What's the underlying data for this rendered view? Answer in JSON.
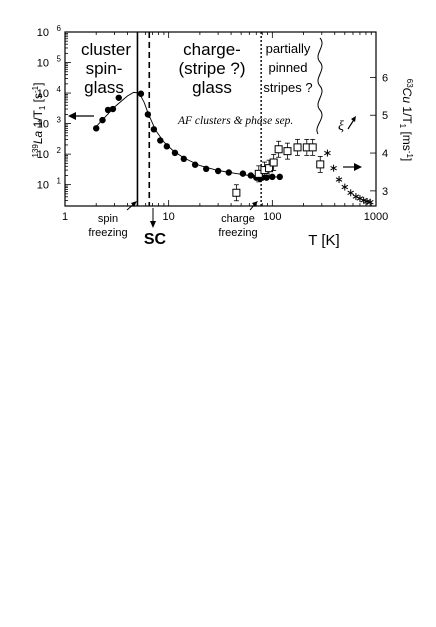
{
  "chart_data": {
    "type": "scatter",
    "x_scale": "log",
    "y_left_scale": "log",
    "xlim": [
      1,
      1000
    ],
    "ylim_left": [
      2,
      1000000
    ],
    "ylim_right": [
      2.6,
      7.2
    ],
    "xlabel": "T [K]",
    "ylabel_left": "139La 1/T1 [s-1]",
    "ylabel_right": "63Cu 1/T1 [ms-1]",
    "x_ticks": [
      {
        "value": 1,
        "label": "1"
      },
      {
        "value": 10,
        "label": "10"
      },
      {
        "value": 100,
        "label": "100"
      },
      {
        "value": 1000,
        "label": "1000"
      }
    ],
    "y_left_ticks": [
      {
        "value": 10,
        "base": "10",
        "exp": "1"
      },
      {
        "value": 100,
        "base": "10",
        "exp": "2"
      },
      {
        "value": 1000,
        "base": "10",
        "exp": "3"
      },
      {
        "value": 10000,
        "base": "10",
        "exp": "4"
      },
      {
        "value": 100000,
        "base": "10",
        "exp": "5"
      },
      {
        "value": 1000000,
        "base": "10",
        "exp": "6"
      }
    ],
    "y_right_ticks": [
      {
        "value": 3,
        "label": "3"
      },
      {
        "value": 4,
        "label": "4"
      },
      {
        "value": 5,
        "label": "5"
      },
      {
        "value": 6,
        "label": "6"
      }
    ],
    "series": [
      {
        "marker": "filled-circle",
        "axis": "left",
        "points": [
          [
            2.0,
            700
          ],
          [
            2.3,
            1300
          ],
          [
            2.6,
            2800
          ],
          [
            2.9,
            3000
          ],
          [
            3.3,
            7000
          ],
          [
            5.4,
            9500
          ],
          [
            6.3,
            2000
          ],
          [
            7.2,
            650
          ],
          [
            8.3,
            280
          ],
          [
            9.6,
            180
          ],
          [
            11.5,
            110
          ],
          [
            14,
            70
          ],
          [
            18,
            45
          ],
          [
            23,
            33
          ],
          [
            30,
            28
          ],
          [
            38,
            25
          ],
          [
            52,
            23
          ],
          [
            62,
            20
          ],
          [
            70,
            17
          ],
          [
            76,
            16
          ],
          [
            80,
            17
          ],
          [
            88,
            17
          ],
          [
            100,
            18
          ],
          [
            118,
            18
          ]
        ]
      },
      {
        "marker": "open-square",
        "axis": "right",
        "points": [
          [
            45,
            2.95
          ],
          [
            74,
            3.45
          ],
          [
            84,
            3.55
          ],
          [
            93,
            3.6
          ],
          [
            103,
            3.75
          ],
          [
            115,
            4.1
          ],
          [
            140,
            4.05
          ],
          [
            175,
            4.15
          ],
          [
            215,
            4.15
          ],
          [
            245,
            4.15
          ],
          [
            290,
            3.7
          ]
        ]
      },
      {
        "marker": "asterisk",
        "axis": "right",
        "points": [
          [
            340,
            4.0
          ],
          [
            390,
            3.6
          ],
          [
            440,
            3.3
          ],
          [
            500,
            3.1
          ],
          [
            570,
            2.95
          ],
          [
            640,
            2.85
          ],
          [
            700,
            2.8
          ],
          [
            760,
            2.75
          ],
          [
            820,
            2.72
          ],
          [
            880,
            2.7
          ]
        ]
      }
    ],
    "fit_curve": {
      "axis": "left",
      "points": [
        [
          2.0,
          800
        ],
        [
          3.0,
          3500
        ],
        [
          4.0,
          8000
        ],
        [
          4.6,
          10500
        ],
        [
          5.2,
          10000
        ],
        [
          5.8,
          5000
        ],
        [
          6.4,
          2000
        ],
        [
          7.5,
          600
        ],
        [
          9,
          250
        ],
        [
          11,
          130
        ],
        [
          14,
          75
        ],
        [
          20,
          42
        ],
        [
          30,
          29
        ],
        [
          45,
          23
        ],
        [
          60,
          20
        ],
        [
          80,
          18
        ],
        [
          100,
          18
        ],
        [
          118,
          18
        ]
      ]
    },
    "vertical_lines": [
      {
        "name": "spin-freezing-line",
        "x": 5.0,
        "style": "solid"
      },
      {
        "name": "sc-line",
        "x": 6.5,
        "style": "dashed"
      },
      {
        "name": "charge-freezing-line",
        "x": 78,
        "style": "dotted"
      }
    ],
    "annotations": {
      "region1_line1": "cluster",
      "region1_line2": "spin-",
      "region1_line3": "glass",
      "region2_line1": "charge-",
      "region2_line2": "(stripe ?)",
      "region2_line3": "glass",
      "region3_line1": "partially",
      "region3_line2": "pinned",
      "region3_line3": "stripes ?",
      "af_text": "AF clusters & phase sep.",
      "xi_label": "ξ",
      "spin_freezing_line1": "spin",
      "spin_freezing_line2": "freezing",
      "charge_freezing_line1": "charge",
      "charge_freezing_line2": "freezing",
      "sc_label": "SC"
    }
  },
  "colors": {
    "ink": "#000000",
    "background": "#ffffff"
  }
}
